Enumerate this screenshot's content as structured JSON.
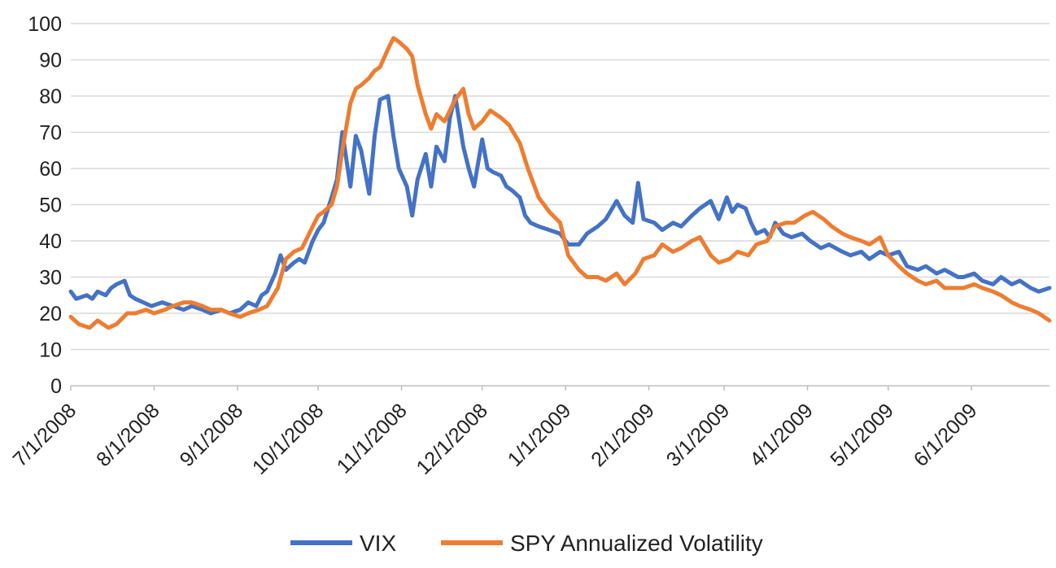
{
  "chart_data": {
    "type": "line",
    "title": "",
    "xlabel": "",
    "ylabel": "",
    "ylim": [
      0,
      100
    ],
    "yticks": [
      "0",
      "10",
      "20",
      "30",
      "40",
      "50",
      "60",
      "70",
      "80",
      "90",
      "100"
    ],
    "xticks": [
      "7/1/2008",
      "8/1/2008",
      "9/1/2008",
      "10/1/2008",
      "11/1/2008",
      "12/1/2008",
      "1/1/2009",
      "2/1/2009",
      "3/1/2009",
      "4/1/2009",
      "5/1/2009",
      "6/1/2009"
    ],
    "xrange": [
      "7/1/2008",
      "6/30/2009"
    ],
    "grid": "horizontal",
    "legend_position": "bottom",
    "series": [
      {
        "name": "VIX",
        "color": "#4472C4",
        "points": [
          [
            "7/1/2008",
            26
          ],
          [
            "7/3/2008",
            24
          ],
          [
            "7/7/2008",
            25
          ],
          [
            "7/9/2008",
            24
          ],
          [
            "7/11/2008",
            26
          ],
          [
            "7/14/2008",
            25
          ],
          [
            "7/16/2008",
            27
          ],
          [
            "7/18/2008",
            28
          ],
          [
            "7/21/2008",
            29
          ],
          [
            "7/23/2008",
            25
          ],
          [
            "7/25/2008",
            24
          ],
          [
            "7/28/2008",
            23
          ],
          [
            "7/31/2008",
            22
          ],
          [
            "8/4/2008",
            23
          ],
          [
            "8/8/2008",
            22
          ],
          [
            "8/12/2008",
            21
          ],
          [
            "8/15/2008",
            22
          ],
          [
            "8/19/2008",
            21
          ],
          [
            "8/22/2008",
            20
          ],
          [
            "8/26/2008",
            21
          ],
          [
            "8/29/2008",
            20
          ],
          [
            "9/2/2008",
            21
          ],
          [
            "9/5/2008",
            23
          ],
          [
            "9/8/2008",
            22
          ],
          [
            "9/10/2008",
            25
          ],
          [
            "9/12/2008",
            26
          ],
          [
            "9/15/2008",
            31
          ],
          [
            "9/17/2008",
            36
          ],
          [
            "9/19/2008",
            32
          ],
          [
            "9/22/2008",
            34
          ],
          [
            "9/24/2008",
            35
          ],
          [
            "9/26/2008",
            34
          ],
          [
            "9/29/2008",
            40
          ],
          [
            "10/1/2008",
            43
          ],
          [
            "10/3/2008",
            45
          ],
          [
            "10/6/2008",
            52
          ],
          [
            "10/8/2008",
            57
          ],
          [
            "10/10/2008",
            70
          ],
          [
            "10/13/2008",
            55
          ],
          [
            "10/15/2008",
            69
          ],
          [
            "10/17/2008",
            65
          ],
          [
            "10/20/2008",
            53
          ],
          [
            "10/22/2008",
            69
          ],
          [
            "10/24/2008",
            79
          ],
          [
            "10/27/2008",
            80
          ],
          [
            "10/29/2008",
            69
          ],
          [
            "10/31/2008",
            60
          ],
          [
            "11/3/2008",
            55
          ],
          [
            "11/5/2008",
            47
          ],
          [
            "11/7/2008",
            57
          ],
          [
            "11/10/2008",
            64
          ],
          [
            "11/12/2008",
            55
          ],
          [
            "11/14/2008",
            66
          ],
          [
            "11/17/2008",
            62
          ],
          [
            "11/19/2008",
            74
          ],
          [
            "11/21/2008",
            80
          ],
          [
            "11/24/2008",
            66
          ],
          [
            "11/26/2008",
            60
          ],
          [
            "11/28/2008",
            55
          ],
          [
            "12/1/2008",
            68
          ],
          [
            "12/3/2008",
            60
          ],
          [
            "12/5/2008",
            59
          ],
          [
            "12/8/2008",
            58
          ],
          [
            "12/10/2008",
            55
          ],
          [
            "12/12/2008",
            54
          ],
          [
            "12/15/2008",
            52
          ],
          [
            "12/17/2008",
            47
          ],
          [
            "12/19/2008",
            45
          ],
          [
            "12/22/2008",
            44
          ],
          [
            "12/26/2008",
            43
          ],
          [
            "12/30/2008",
            42
          ],
          [
            "1/2/2009",
            39
          ],
          [
            "1/6/2009",
            39
          ],
          [
            "1/9/2009",
            42
          ],
          [
            "1/13/2009",
            44
          ],
          [
            "1/16/2009",
            46
          ],
          [
            "1/20/2009",
            51
          ],
          [
            "1/23/2009",
            47
          ],
          [
            "1/26/2009",
            45
          ],
          [
            "1/28/2009",
            56
          ],
          [
            "1/30/2009",
            46
          ],
          [
            "2/3/2009",
            45
          ],
          [
            "2/6/2009",
            43
          ],
          [
            "2/10/2009",
            45
          ],
          [
            "2/13/2009",
            44
          ],
          [
            "2/17/2009",
            47
          ],
          [
            "2/20/2009",
            49
          ],
          [
            "2/24/2009",
            51
          ],
          [
            "2/27/2009",
            46
          ],
          [
            "3/2/2009",
            52
          ],
          [
            "3/4/2009",
            48
          ],
          [
            "3/6/2009",
            50
          ],
          [
            "3/9/2009",
            49
          ],
          [
            "3/11/2009",
            45
          ],
          [
            "3/13/2009",
            42
          ],
          [
            "3/16/2009",
            43
          ],
          [
            "3/18/2009",
            41
          ],
          [
            "3/20/2009",
            45
          ],
          [
            "3/23/2009",
            42
          ],
          [
            "3/26/2009",
            41
          ],
          [
            "3/30/2009",
            42
          ],
          [
            "4/2/2009",
            40
          ],
          [
            "4/6/2009",
            38
          ],
          [
            "4/9/2009",
            39
          ],
          [
            "4/14/2009",
            37
          ],
          [
            "4/17/2009",
            36
          ],
          [
            "4/21/2009",
            37
          ],
          [
            "4/24/2009",
            35
          ],
          [
            "4/28/2009",
            37
          ],
          [
            "5/1/2009",
            36
          ],
          [
            "5/5/2009",
            37
          ],
          [
            "5/8/2009",
            33
          ],
          [
            "5/12/2009",
            32
          ],
          [
            "5/15/2009",
            33
          ],
          [
            "5/19/2009",
            31
          ],
          [
            "5/22/2009",
            32
          ],
          [
            "5/27/2009",
            30
          ],
          [
            "5/29/2009",
            30
          ],
          [
            "6/2/2009",
            31
          ],
          [
            "6/5/2009",
            29
          ],
          [
            "6/9/2009",
            28
          ],
          [
            "6/12/2009",
            30
          ],
          [
            "6/16/2009",
            28
          ],
          [
            "6/19/2009",
            29
          ],
          [
            "6/23/2009",
            27
          ],
          [
            "6/26/2009",
            26
          ],
          [
            "6/30/2009",
            27
          ]
        ]
      },
      {
        "name": "SPY Annualized Volatility",
        "color": "#ED7D31",
        "points": [
          [
            "7/1/2008",
            19
          ],
          [
            "7/4/2008",
            17
          ],
          [
            "7/8/2008",
            16
          ],
          [
            "7/11/2008",
            18
          ],
          [
            "7/15/2008",
            16
          ],
          [
            "7/18/2008",
            17
          ],
          [
            "7/22/2008",
            20
          ],
          [
            "7/25/2008",
            20
          ],
          [
            "7/29/2008",
            21
          ],
          [
            "8/1/2008",
            20
          ],
          [
            "8/5/2008",
            21
          ],
          [
            "8/8/2008",
            22
          ],
          [
            "8/12/2008",
            23
          ],
          [
            "8/15/2008",
            23
          ],
          [
            "8/19/2008",
            22
          ],
          [
            "8/22/2008",
            21
          ],
          [
            "8/26/2008",
            21
          ],
          [
            "8/29/2008",
            20
          ],
          [
            "9/2/2008",
            19
          ],
          [
            "9/5/2008",
            20
          ],
          [
            "9/9/2008",
            21
          ],
          [
            "9/12/2008",
            22
          ],
          [
            "9/16/2008",
            27
          ],
          [
            "9/19/2008",
            35
          ],
          [
            "9/22/2008",
            37
          ],
          [
            "9/25/2008",
            38
          ],
          [
            "9/29/2008",
            44
          ],
          [
            "10/1/2008",
            47
          ],
          [
            "10/3/2008",
            48
          ],
          [
            "10/6/2008",
            50
          ],
          [
            "10/8/2008",
            55
          ],
          [
            "10/10/2008",
            65
          ],
          [
            "10/13/2008",
            78
          ],
          [
            "10/15/2008",
            82
          ],
          [
            "10/17/2008",
            83
          ],
          [
            "10/20/2008",
            85
          ],
          [
            "10/22/2008",
            87
          ],
          [
            "10/24/2008",
            88
          ],
          [
            "10/27/2008",
            93
          ],
          [
            "10/29/2008",
            96
          ],
          [
            "10/31/2008",
            95
          ],
          [
            "11/3/2008",
            93
          ],
          [
            "11/5/2008",
            91
          ],
          [
            "11/7/2008",
            83
          ],
          [
            "11/10/2008",
            75
          ],
          [
            "11/12/2008",
            71
          ],
          [
            "11/14/2008",
            75
          ],
          [
            "11/17/2008",
            73
          ],
          [
            "11/19/2008",
            76
          ],
          [
            "11/21/2008",
            79
          ],
          [
            "11/24/2008",
            82
          ],
          [
            "11/26/2008",
            75
          ],
          [
            "11/28/2008",
            71
          ],
          [
            "12/1/2008",
            73
          ],
          [
            "12/4/2008",
            76
          ],
          [
            "12/8/2008",
            74
          ],
          [
            "12/11/2008",
            72
          ],
          [
            "12/15/2008",
            67
          ],
          [
            "12/18/2008",
            60
          ],
          [
            "12/22/2008",
            52
          ],
          [
            "12/26/2008",
            48
          ],
          [
            "12/30/2008",
            45
          ],
          [
            "1/2/2009",
            36
          ],
          [
            "1/6/2009",
            32
          ],
          [
            "1/9/2009",
            30
          ],
          [
            "1/13/2009",
            30
          ],
          [
            "1/16/2009",
            29
          ],
          [
            "1/20/2009",
            31
          ],
          [
            "1/23/2009",
            28
          ],
          [
            "1/27/2009",
            31
          ],
          [
            "1/30/2009",
            35
          ],
          [
            "2/3/2009",
            36
          ],
          [
            "2/6/2009",
            39
          ],
          [
            "2/10/2009",
            37
          ],
          [
            "2/13/2009",
            38
          ],
          [
            "2/17/2009",
            40
          ],
          [
            "2/20/2009",
            41
          ],
          [
            "2/24/2009",
            36
          ],
          [
            "2/27/2009",
            34
          ],
          [
            "3/3/2009",
            35
          ],
          [
            "3/6/2009",
            37
          ],
          [
            "3/10/2009",
            36
          ],
          [
            "3/13/2009",
            39
          ],
          [
            "3/17/2009",
            40
          ],
          [
            "3/20/2009",
            44
          ],
          [
            "3/24/2009",
            45
          ],
          [
            "3/27/2009",
            45
          ],
          [
            "3/31/2009",
            47
          ],
          [
            "4/3/2009",
            48
          ],
          [
            "4/7/2009",
            46
          ],
          [
            "4/10/2009",
            44
          ],
          [
            "4/14/2009",
            42
          ],
          [
            "4/17/2009",
            41
          ],
          [
            "4/21/2009",
            40
          ],
          [
            "4/24/2009",
            39
          ],
          [
            "4/28/2009",
            41
          ],
          [
            "5/1/2009",
            36
          ],
          [
            "5/5/2009",
            33
          ],
          [
            "5/8/2009",
            31
          ],
          [
            "5/12/2009",
            29
          ],
          [
            "5/15/2009",
            28
          ],
          [
            "5/19/2009",
            29
          ],
          [
            "5/22/2009",
            27
          ],
          [
            "5/27/2009",
            27
          ],
          [
            "5/29/2009",
            27
          ],
          [
            "6/2/2009",
            28
          ],
          [
            "6/5/2009",
            27
          ],
          [
            "6/9/2009",
            26
          ],
          [
            "6/12/2009",
            25
          ],
          [
            "6/16/2009",
            23
          ],
          [
            "6/19/2009",
            22
          ],
          [
            "6/23/2009",
            21
          ],
          [
            "6/26/2009",
            20
          ],
          [
            "6/30/2009",
            18
          ]
        ]
      }
    ]
  }
}
